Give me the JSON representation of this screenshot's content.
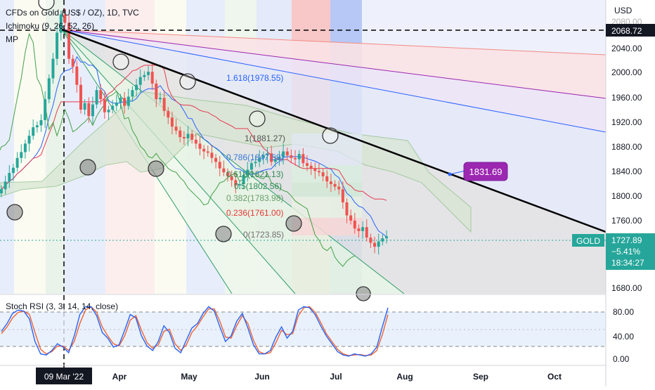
{
  "header": {
    "symbol_title": "CFDs on Gold (US$ / OZ), 1D, TVC",
    "indicator_ichimoku": "Ichimoku (9, 26, 52, 26)",
    "indicator_mp": "MP",
    "currency": "USD"
  },
  "stoch_rsi": {
    "label": "Stoch RSI (3, 3, 14, 14, close)",
    "ticks": [
      "80.00",
      "40.00",
      "0.00"
    ],
    "k_values": [
      48,
      62,
      80,
      86,
      84,
      70,
      30,
      8,
      6,
      14,
      26,
      20,
      10,
      40,
      78,
      92,
      92,
      76,
      46,
      36,
      20,
      24,
      50,
      78,
      72,
      40,
      22,
      14,
      30,
      58,
      46,
      18,
      10,
      32,
      54,
      62,
      80,
      92,
      84,
      56,
      30,
      40,
      66,
      80,
      54,
      24,
      8,
      8,
      14,
      38,
      56,
      36,
      48,
      86,
      92,
      90,
      78,
      58,
      40,
      26,
      12,
      6,
      4,
      8,
      6,
      4,
      8,
      20,
      56,
      90
    ],
    "d_values": [
      44,
      56,
      72,
      82,
      84,
      78,
      46,
      16,
      8,
      12,
      22,
      22,
      14,
      30,
      62,
      86,
      92,
      82,
      56,
      40,
      26,
      22,
      40,
      68,
      76,
      50,
      28,
      18,
      24,
      48,
      52,
      26,
      14,
      24,
      46,
      58,
      74,
      88,
      88,
      66,
      38,
      36,
      58,
      76,
      62,
      32,
      12,
      8,
      10,
      28,
      50,
      42,
      44,
      76,
      90,
      92,
      82,
      64,
      44,
      30,
      16,
      8,
      5,
      6,
      7,
      5,
      6,
      14,
      42,
      78
    ],
    "series_colors": {
      "k": "#2962ff",
      "d": "#f0622e"
    }
  },
  "price_axis": {
    "ticks": [
      "2080.00",
      "2040.00",
      "2000.00",
      "1960.00",
      "1920.00",
      "1880.00",
      "1840.00",
      "1800.00",
      "1760.00",
      "1680.00"
    ],
    "top_label": "2068.72",
    "current_price": "1727.89",
    "change": "−5.41%",
    "countdown": "18:34:27",
    "gold_tag": "GOLD"
  },
  "time_axis": {
    "labels": [
      "Apr",
      "May",
      "Jun",
      "Jul",
      "Aug",
      "Sep",
      "Oct"
    ],
    "crosshair_label": "09 Mar '22"
  },
  "callout": {
    "label": "1831.69"
  },
  "fib_levels": [
    {
      "label": "1.618(1978.55)",
      "color": "#2962ff"
    },
    {
      "label": "1(1881.27)",
      "color": "#555555"
    },
    {
      "label": "0.786(1847.58)",
      "color": "#3a7bd5"
    },
    {
      "label": "0.618(1821.13)",
      "color": "#2e8b57"
    },
    {
      "label": "0.5(1802.56)",
      "color": "#2e8b57"
    },
    {
      "label": "0.382(1783.98)",
      "color": "#6a9f6a"
    },
    {
      "label": "0.236(1761.00)",
      "color": "#e53935"
    },
    {
      "label": "0(1723.85)",
      "color": "#707070"
    }
  ],
  "colors": {
    "green_candle": "#26a69a",
    "red_candle": "#ef5350",
    "trendline": "#000000",
    "tenkan": "#2962ff",
    "kijun": "#e53950",
    "callout_bg": "#9c27b0",
    "price_tag_bg": "#26a69a"
  },
  "chart_data": {
    "type": "candlestick",
    "title": "CFDs on Gold (US$ / OZ), 1D, TVC",
    "x": [
      "Mar",
      "Apr",
      "May",
      "Jun",
      "Jul"
    ],
    "ylabel": "USD",
    "ylim": [
      1640,
      2090
    ],
    "close_series": [
      1800,
      1812,
      1825,
      1833,
      1848,
      1857,
      1870,
      1882,
      1895,
      1898,
      1906,
      1938,
      1970,
      2000,
      2040,
      2068,
      2055,
      2000,
      1988,
      1960,
      1922,
      1932,
      1912,
      1930,
      1952,
      1938,
      1918,
      1922,
      1928,
      1933,
      1940,
      1928,
      1942,
      1952,
      1960,
      1972,
      1975,
      1980,
      1962,
      1938,
      1940,
      1920,
      1910,
      1896,
      1890,
      1880,
      1878,
      1885,
      1876,
      1870,
      1862,
      1858,
      1856,
      1848,
      1842,
      1832,
      1826,
      1820,
      1814,
      1806,
      1808,
      1822,
      1830,
      1840,
      1842,
      1848,
      1852,
      1855,
      1842,
      1846,
      1850,
      1858,
      1852,
      1848,
      1846,
      1854,
      1840,
      1836,
      1832,
      1828,
      1826,
      1820,
      1812,
      1808,
      1804,
      1800,
      1780,
      1760,
      1752,
      1740,
      1736,
      1742,
      1726,
      1718,
      1712,
      1720,
      1725,
      1728
    ],
    "current_price": 1727.89,
    "previous_high": 2068.72,
    "callout_value": 1831.69,
    "fib_retracement": [
      {
        "ratio": 1.618,
        "value": 1978.55
      },
      {
        "ratio": 1,
        "value": 1881.27
      },
      {
        "ratio": 0.786,
        "value": 1847.58
      },
      {
        "ratio": 0.618,
        "value": 1821.13
      },
      {
        "ratio": 0.5,
        "value": 1802.56
      },
      {
        "ratio": 0.382,
        "value": 1783.98
      },
      {
        "ratio": 0.236,
        "value": 1761.0
      },
      {
        "ratio": 0,
        "value": 1723.85
      }
    ]
  }
}
